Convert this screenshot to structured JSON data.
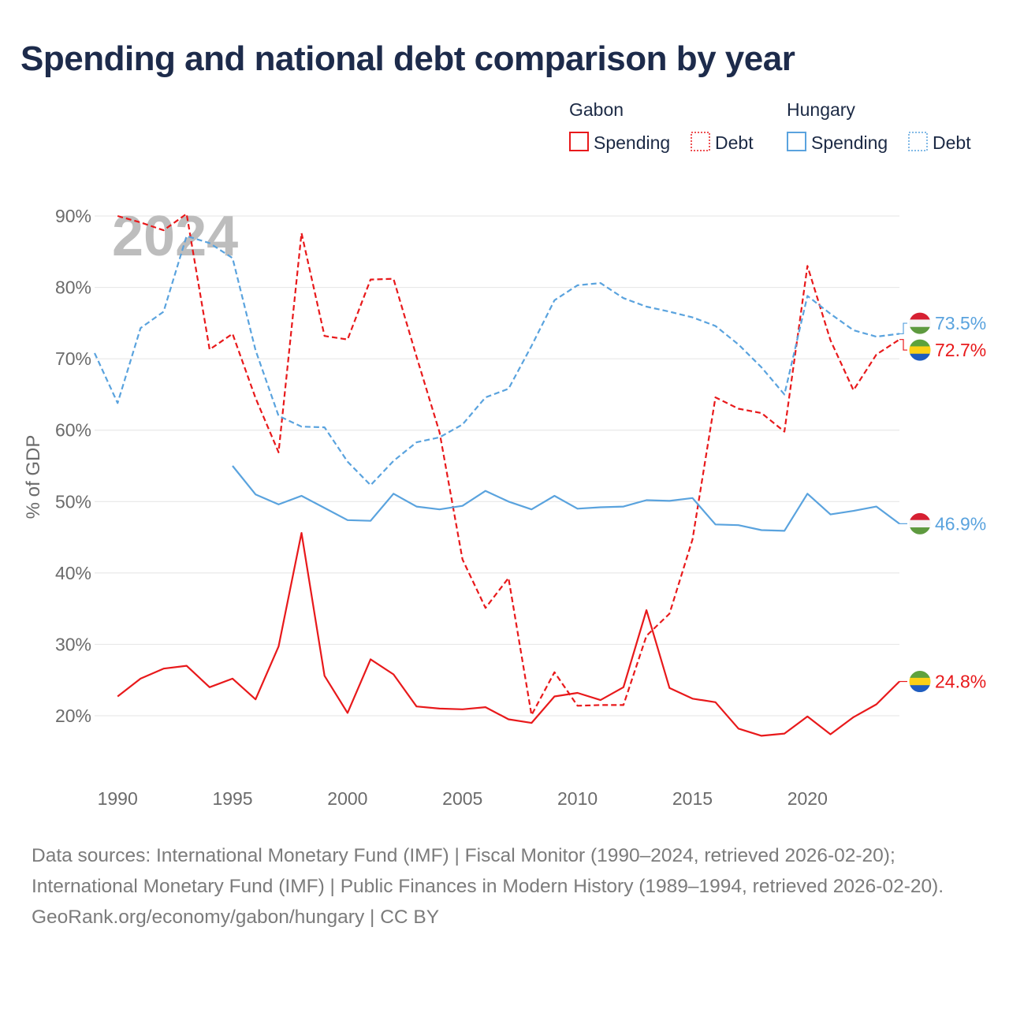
{
  "chart_data": {
    "type": "line",
    "title": "Spending and national debt comparison by year",
    "watermark_year": "2024",
    "ylabel": "% of GDP",
    "xlabel": "",
    "xlim": [
      1989,
      2024
    ],
    "ylim": [
      13,
      91
    ],
    "y_ticks": [
      20,
      30,
      40,
      50,
      60,
      70,
      80,
      90
    ],
    "y_tick_labels": [
      "20%",
      "30%",
      "40%",
      "50%",
      "60%",
      "70%",
      "80%",
      "90%"
    ],
    "x_ticks": [
      1990,
      1995,
      2000,
      2005,
      2010,
      2015,
      2020
    ],
    "x_tick_labels": [
      "1990",
      "1995",
      "2000",
      "2005",
      "2010",
      "2015",
      "2020"
    ],
    "grid": "horizontal",
    "legend": {
      "placement": "top-right",
      "groups": [
        {
          "name": "Gabon",
          "entries": [
            {
              "label": "Spending",
              "style": "solid",
              "color": "#e8191b"
            },
            {
              "label": "Debt",
              "style": "dashed",
              "color": "#e8191b"
            }
          ]
        },
        {
          "name": "Hungary",
          "entries": [
            {
              "label": "Spending",
              "style": "solid",
              "color": "#5aa3de"
            },
            {
              "label": "Debt",
              "style": "dashed",
              "color": "#5aa3de"
            }
          ]
        }
      ]
    },
    "series": [
      {
        "name": "Gabon Spending",
        "country": "Gabon",
        "measure": "Spending",
        "color": "#e8191b",
        "style": "solid",
        "end_label": "24.8%",
        "flag": "gabon",
        "x": [
          1990,
          1991,
          1992,
          1993,
          1994,
          1995,
          1996,
          1997,
          1998,
          1999,
          2000,
          2001,
          2002,
          2003,
          2004,
          2005,
          2006,
          2007,
          2008,
          2009,
          2010,
          2011,
          2012,
          2013,
          2014,
          2015,
          2016,
          2017,
          2018,
          2019,
          2020,
          2021,
          2022,
          2023,
          2024
        ],
        "values": [
          22.7,
          25.2,
          26.6,
          27.0,
          24.0,
          25.2,
          22.3,
          29.7,
          45.6,
          25.6,
          20.4,
          27.9,
          25.8,
          21.3,
          21.0,
          20.9,
          21.2,
          19.5,
          19.0,
          22.7,
          23.2,
          22.2,
          24.0,
          34.8,
          23.9,
          22.4,
          21.9,
          18.2,
          17.2,
          17.5,
          19.9,
          17.4,
          19.8,
          21.6,
          24.8
        ]
      },
      {
        "name": "Gabon Debt",
        "country": "Gabon",
        "measure": "Debt",
        "color": "#e8191b",
        "style": "dashed",
        "end_label": "72.7%",
        "flag": "gabon",
        "x": [
          1990,
          1991,
          1992,
          1993,
          1994,
          1995,
          1996,
          1997,
          1998,
          1999,
          2000,
          2001,
          2002,
          2003,
          2004,
          2005,
          2006,
          2007,
          2008,
          2009,
          2010,
          2011,
          2012,
          2013,
          2014,
          2015,
          2016,
          2017,
          2018,
          2019,
          2020,
          2021,
          2022,
          2023,
          2024
        ],
        "values": [
          90.0,
          89.1,
          88.0,
          90.3,
          71.3,
          73.5,
          64.5,
          56.9,
          87.6,
          73.2,
          72.7,
          81.1,
          81.2,
          70.3,
          59.7,
          41.9,
          35.1,
          39.3,
          20.1,
          26.1,
          21.4,
          21.5,
          21.5,
          31.2,
          34.3,
          44.7,
          64.6,
          63.0,
          62.4,
          59.8,
          83.0,
          72.6,
          65.6,
          70.6,
          72.7
        ]
      },
      {
        "name": "Hungary Spending",
        "country": "Hungary",
        "measure": "Spending",
        "color": "#5aa3de",
        "style": "solid",
        "end_label": "46.9%",
        "flag": "hungary",
        "x": [
          1995,
          1996,
          1997,
          1998,
          1999,
          2000,
          2001,
          2002,
          2003,
          2004,
          2005,
          2006,
          2007,
          2008,
          2009,
          2010,
          2011,
          2012,
          2013,
          2014,
          2015,
          2016,
          2017,
          2018,
          2019,
          2020,
          2021,
          2022,
          2023,
          2024
        ],
        "values": [
          55.0,
          51.0,
          49.6,
          50.8,
          49.1,
          47.4,
          47.3,
          51.1,
          49.3,
          48.9,
          49.4,
          51.5,
          50.0,
          48.9,
          50.8,
          49.0,
          49.2,
          49.3,
          50.2,
          50.1,
          50.5,
          46.8,
          46.7,
          46.0,
          45.9,
          51.1,
          48.2,
          48.7,
          49.3,
          46.9
        ]
      },
      {
        "name": "Hungary Debt",
        "country": "Hungary",
        "measure": "Debt",
        "color": "#5aa3de",
        "style": "dashed",
        "end_label": "73.5%",
        "flag": "hungary",
        "x": [
          1989,
          1990,
          1991,
          1992,
          1993,
          1994,
          1995,
          1996,
          1997,
          1998,
          1999,
          2000,
          2001,
          2002,
          2003,
          2004,
          2005,
          2006,
          2007,
          2008,
          2009,
          2010,
          2011,
          2012,
          2013,
          2014,
          2015,
          2016,
          2017,
          2018,
          2019,
          2020,
          2021,
          2022,
          2023,
          2024
        ],
        "values": [
          70.8,
          63.8,
          74.3,
          76.6,
          87.2,
          86.2,
          84.1,
          71.2,
          62.0,
          60.5,
          60.4,
          55.6,
          52.3,
          55.7,
          58.3,
          59.0,
          60.8,
          64.6,
          65.8,
          71.8,
          78.2,
          80.3,
          80.6,
          78.5,
          77.3,
          76.6,
          75.8,
          74.6,
          72.0,
          68.8,
          65.0,
          78.8,
          76.3,
          74.0,
          73.1,
          73.5
        ]
      }
    ]
  },
  "footer": {
    "sources": "Data sources: International Monetary Fund (IMF) | Fiscal Monitor (1990–2024, retrieved 2026-02-20); International Monetary Fund (IMF) | Public Finances in Modern History (1989–1994, retrieved 2026-02-20).",
    "credit": "GeoRank.org/economy/gabon/hungary | CC BY"
  }
}
